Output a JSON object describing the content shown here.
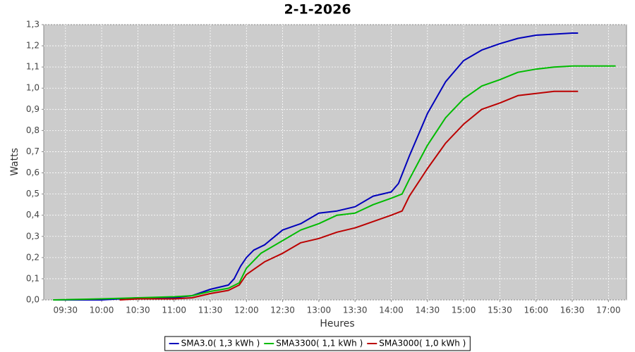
{
  "chart_data": {
    "type": "line",
    "title": "2-1-2026",
    "x_label": "Heures",
    "y_label": "Watts",
    "xlim": [
      9.2,
      17.25
    ],
    "ylim": [
      0,
      1.3
    ],
    "xticks": [
      {
        "value": 9.5,
        "label": "09:30"
      },
      {
        "value": 10,
        "label": "10:00"
      },
      {
        "value": 10.5,
        "label": "10:30"
      },
      {
        "value": 11,
        "label": "11:00"
      },
      {
        "value": 11.5,
        "label": "11:30"
      },
      {
        "value": 12,
        "label": "12:00"
      },
      {
        "value": 12.5,
        "label": "12:30"
      },
      {
        "value": 13,
        "label": "13:00"
      },
      {
        "value": 13.5,
        "label": "13:30"
      },
      {
        "value": 14,
        "label": "14:00"
      },
      {
        "value": 14.5,
        "label": "14:30"
      },
      {
        "value": 15,
        "label": "15:00"
      },
      {
        "value": 15.5,
        "label": "15:30"
      },
      {
        "value": 16,
        "label": "16:00"
      },
      {
        "value": 16.5,
        "label": "16:30"
      },
      {
        "value": 17,
        "label": "17:00"
      }
    ],
    "yticks": [
      {
        "value": 0,
        "label": "0,0"
      },
      {
        "value": 0.1,
        "label": "0,1"
      },
      {
        "value": 0.2,
        "label": "0,2"
      },
      {
        "value": 0.3,
        "label": "0,3"
      },
      {
        "value": 0.4,
        "label": "0,4"
      },
      {
        "value": 0.5,
        "label": "0,5"
      },
      {
        "value": 0.6,
        "label": "0,6"
      },
      {
        "value": 0.7,
        "label": "0,7"
      },
      {
        "value": 0.8,
        "label": "0,8"
      },
      {
        "value": 0.9,
        "label": "0,9"
      },
      {
        "value": 1.0,
        "label": "1,0"
      },
      {
        "value": 1.1,
        "label": "1,1"
      },
      {
        "value": 1.2,
        "label": "1,2"
      },
      {
        "value": 1.3,
        "label": "1,3"
      }
    ],
    "grid": true,
    "legend": "bottom",
    "series": [
      {
        "name": "SMA3.0( 1,3 kWh )",
        "color": "#0000bb",
        "x": [
          9.33,
          10,
          10.5,
          11,
          11.25,
          11.5,
          11.75,
          11.83,
          11.92,
          12,
          12.1,
          12.25,
          12.5,
          12.75,
          13,
          13.25,
          13.5,
          13.75,
          14,
          14.1,
          14.25,
          14.5,
          14.75,
          15,
          15.25,
          15.5,
          15.75,
          16,
          16.25,
          16.5,
          16.58
        ],
        "values": [
          0,
          0,
          0.01,
          0.01,
          0.02,
          0.05,
          0.07,
          0.1,
          0.16,
          0.2,
          0.235,
          0.26,
          0.33,
          0.36,
          0.41,
          0.42,
          0.44,
          0.49,
          0.51,
          0.55,
          0.68,
          0.88,
          1.03,
          1.13,
          1.18,
          1.21,
          1.235,
          1.25,
          1.255,
          1.26,
          1.26
        ]
      },
      {
        "name": "SMA3300( 1,1 kWh )",
        "color": "#00bb00",
        "x": [
          9.33,
          10,
          10.5,
          11,
          11.25,
          11.5,
          11.75,
          11.9,
          12,
          12.2,
          12.5,
          12.75,
          13,
          13.25,
          13.5,
          13.75,
          14,
          14.15,
          14.25,
          14.5,
          14.75,
          15,
          15.25,
          15.5,
          15.75,
          16,
          16.25,
          16.5,
          17.1
        ],
        "values": [
          0,
          0.005,
          0.01,
          0.015,
          0.02,
          0.04,
          0.055,
          0.08,
          0.15,
          0.22,
          0.28,
          0.33,
          0.36,
          0.4,
          0.41,
          0.45,
          0.48,
          0.5,
          0.57,
          0.73,
          0.86,
          0.95,
          1.01,
          1.04,
          1.075,
          1.09,
          1.1,
          1.105,
          1.105
        ]
      },
      {
        "name": "SMA3000( 1,0 kWh )",
        "color": "#bb0000",
        "x": [
          10.25,
          10.5,
          11,
          11.25,
          11.5,
          11.75,
          11.9,
          12,
          12.25,
          12.5,
          12.75,
          13,
          13.25,
          13.5,
          13.75,
          14,
          14.15,
          14.25,
          14.5,
          14.75,
          15,
          15.25,
          15.5,
          15.75,
          16,
          16.25,
          16.58
        ],
        "values": [
          0,
          0.005,
          0.005,
          0.01,
          0.03,
          0.045,
          0.07,
          0.12,
          0.18,
          0.22,
          0.27,
          0.29,
          0.32,
          0.34,
          0.37,
          0.4,
          0.42,
          0.49,
          0.62,
          0.74,
          0.83,
          0.9,
          0.93,
          0.965,
          0.975,
          0.985,
          0.985
        ]
      }
    ]
  }
}
